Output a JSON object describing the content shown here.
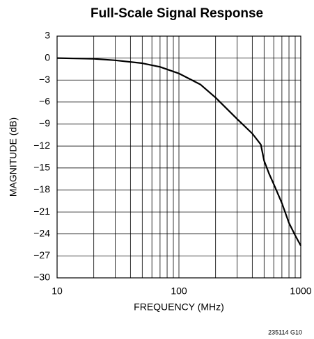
{
  "chart_data": {
    "type": "line",
    "title": "Full-Scale Signal Response",
    "xlabel": "FREQUENCY (MHz)",
    "ylabel": "MAGNITUDE (dB)",
    "note": "235114 G10",
    "x": [
      10,
      20,
      30,
      50,
      70,
      100,
      150,
      200,
      300,
      400,
      470,
      500,
      550,
      600,
      700,
      800,
      900,
      1000
    ],
    "series": [
      {
        "name": "Magnitude",
        "color": "#000000",
        "values": [
          0,
          -0.1,
          -0.3,
          -0.7,
          -1.2,
          -2.1,
          -3.6,
          -5.4,
          -8.3,
          -10.3,
          -11.8,
          -14,
          -15.8,
          -17.2,
          -19.8,
          -22.5,
          -24.2,
          -25.6
        ]
      }
    ],
    "xlim": [
      10,
      1000
    ],
    "xscale": "log",
    "xticks": [
      10,
      100,
      1000
    ],
    "x_minor_ticks": [
      20,
      30,
      40,
      50,
      60,
      70,
      80,
      90,
      200,
      300,
      400,
      500,
      600,
      700,
      800,
      900
    ],
    "ylim": [
      -30,
      3
    ],
    "yticks": [
      {
        "value": -30,
        "label": "−30"
      },
      {
        "value": -27,
        "label": "−27"
      },
      {
        "value": -24,
        "label": "−24"
      },
      {
        "value": -21,
        "label": "−21"
      },
      {
        "value": -18,
        "label": "−18"
      },
      {
        "value": -15,
        "label": "−15"
      },
      {
        "value": -12,
        "label": "−12"
      },
      {
        "value": -9,
        "label": "−9"
      },
      {
        "value": -6,
        "label": "−6"
      },
      {
        "value": -3,
        "label": "−3"
      },
      0,
      3
    ],
    "grid": true
  }
}
